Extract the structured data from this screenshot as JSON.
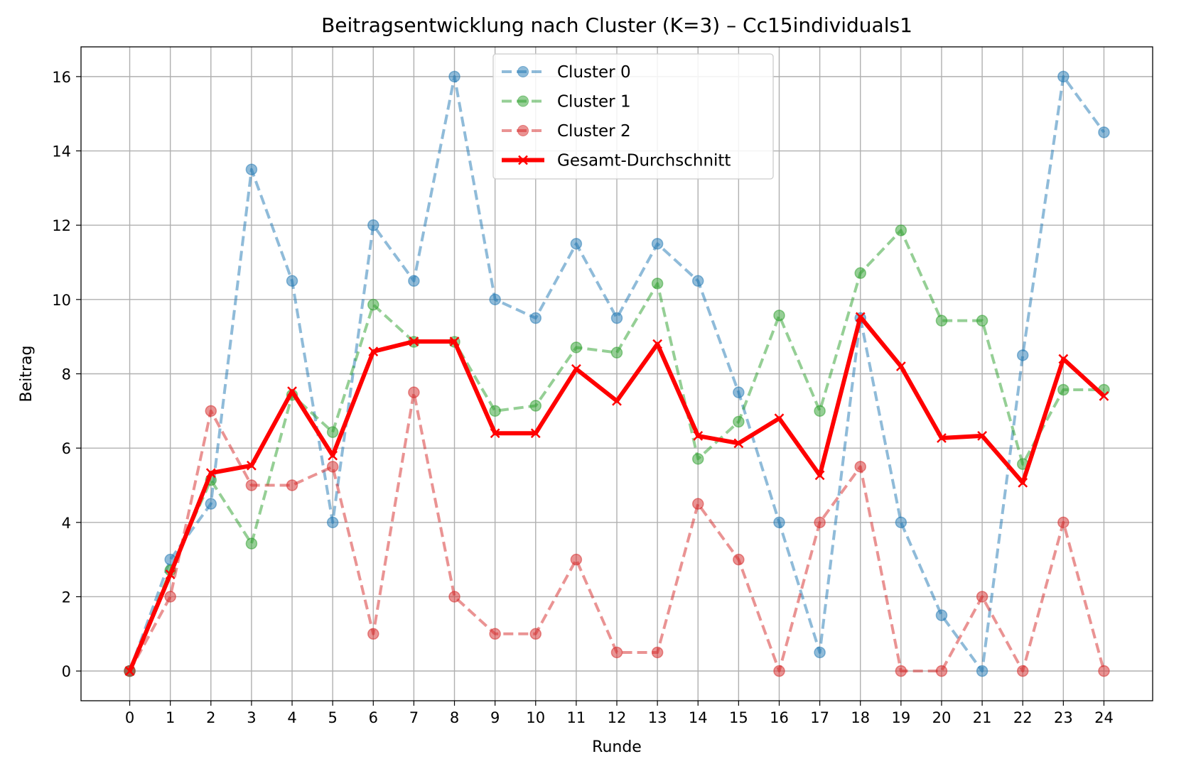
{
  "chart_data": {
    "type": "line",
    "title": "Beitragsentwicklung nach Cluster (K=3) – Cc15individuals1",
    "xlabel": "Runde",
    "ylabel": "Beitrag",
    "x": [
      0,
      1,
      2,
      3,
      4,
      5,
      6,
      7,
      8,
      9,
      10,
      11,
      12,
      13,
      14,
      15,
      16,
      17,
      18,
      19,
      20,
      21,
      22,
      23,
      24
    ],
    "xlim": [
      -1.2,
      25.2
    ],
    "ylim": [
      -0.8,
      16.8
    ],
    "yticks": [
      0,
      2,
      4,
      6,
      8,
      10,
      12,
      14,
      16
    ],
    "grid": true,
    "legend_position": "top-center",
    "series": [
      {
        "name": "Cluster 0",
        "color": "#1f77b4",
        "style": "dashed-marker-circle",
        "values": [
          0,
          3,
          4.5,
          13.5,
          10.5,
          4,
          12,
          10.5,
          16,
          10,
          9.5,
          11.5,
          9.5,
          11.5,
          10.5,
          7.5,
          4,
          0.5,
          9.5,
          4,
          1.5,
          0,
          8.5,
          16,
          14.5
        ]
      },
      {
        "name": "Cluster 1",
        "color": "#2ca02c",
        "style": "dashed-marker-circle",
        "values": [
          0,
          2.71,
          5.14,
          3.43,
          7.43,
          6.43,
          9.86,
          8.86,
          8.86,
          7,
          7.14,
          8.71,
          8.57,
          10.43,
          5.71,
          6.71,
          9.57,
          7,
          10.71,
          11.86,
          9.43,
          9.43,
          5.57,
          7.57,
          7.57
        ]
      },
      {
        "name": "Cluster 2",
        "color": "#d62728",
        "style": "dashed-marker-circle",
        "values": [
          0,
          2,
          7,
          5,
          5,
          5.5,
          1,
          7.5,
          2,
          1,
          1,
          3,
          0.5,
          0.5,
          4.5,
          3,
          0,
          4,
          5.5,
          0,
          0,
          2,
          0,
          4,
          0
        ]
      },
      {
        "name": "Gesamt-Durchschnitt",
        "color": "#ff0000",
        "style": "solid-marker-x",
        "values": [
          0,
          2.6,
          5.33,
          5.53,
          7.53,
          5.8,
          8.6,
          8.87,
          8.87,
          6.4,
          6.4,
          8.13,
          7.27,
          8.8,
          6.33,
          6.13,
          6.8,
          5.27,
          9.53,
          8.2,
          6.27,
          6.33,
          5.07,
          8.4,
          7.4
        ]
      }
    ]
  }
}
